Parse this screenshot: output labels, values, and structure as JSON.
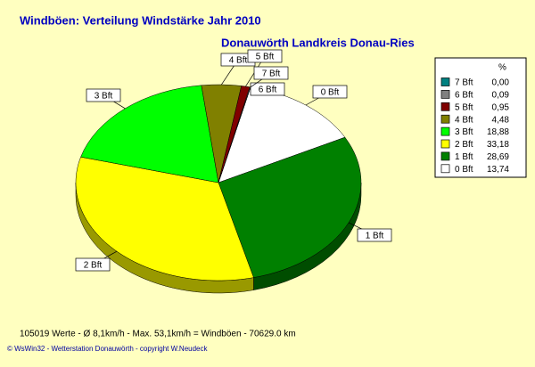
{
  "chart_data": {
    "type": "pie",
    "title": "Windböen: Verteilung Windstärke  Jahr 2010",
    "subtitle": "Donauwörth Landkreis Donau-Ries",
    "legend_title": "%",
    "categories": [
      "0 Bft",
      "1 Bft",
      "2 Bft",
      "3 Bft",
      "4 Bft",
      "5 Bft",
      "6 Bft",
      "7 Bft"
    ],
    "values": [
      13.74,
      28.69,
      33.18,
      18.88,
      4.48,
      0.95,
      0.09,
      0.0
    ],
    "value_labels": [
      "13,74",
      "28,69",
      "33,18",
      "18,88",
      "4,48",
      "0,95",
      "0,09",
      "0,00"
    ],
    "colors": [
      "#ffffff",
      "#008000",
      "#ffff00",
      "#00ff00",
      "#808000",
      "#800000",
      "#808080",
      "#008080"
    ],
    "footer": "105019 Werte   -   Ø 8,1km/h  -  Max. 53,1km/h = Windböen   -   70629.0 km",
    "copyright": "© WsWin32  -  Wetterstation Donauwörth  -  copyright W.Neudeck"
  }
}
